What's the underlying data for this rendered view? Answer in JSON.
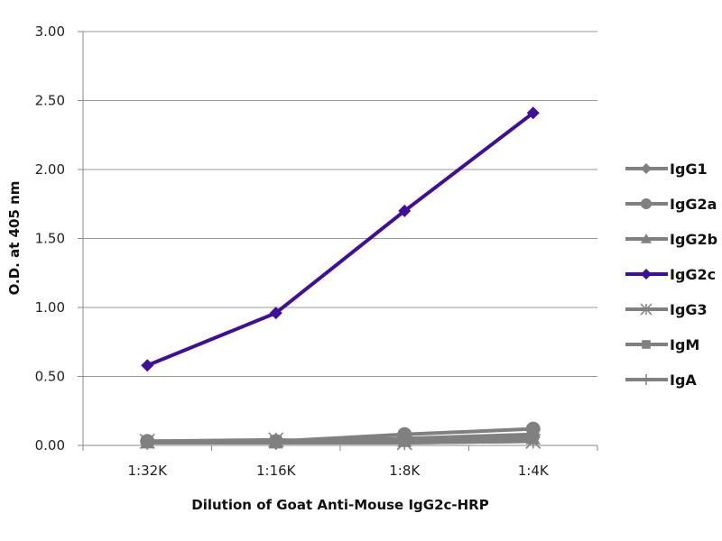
{
  "chart_data": {
    "type": "line",
    "title": "",
    "xlabel": "Dilution of Goat Anti-Mouse IgG2c-HRP",
    "ylabel": "O.D. at 405 nm",
    "categories": [
      "1:32K",
      "1:16K",
      "1:8K",
      "1:4K"
    ],
    "ylim": [
      0,
      3
    ],
    "yticks": [
      "0.00",
      "0.50",
      "1.00",
      "1.50",
      "2.00",
      "2.50",
      "3.00"
    ],
    "grid": true,
    "legend_position": "right",
    "series": [
      {
        "name": "IgG1",
        "marker": "diamond",
        "color": "#808080",
        "values": [
          0.03,
          0.02,
          0.04,
          0.06
        ]
      },
      {
        "name": "IgG2a",
        "marker": "circle",
        "color": "#808080",
        "values": [
          0.03,
          0.03,
          0.08,
          0.12
        ]
      },
      {
        "name": "IgG2b",
        "marker": "triangle",
        "color": "#808080",
        "values": [
          0.02,
          0.02,
          0.03,
          0.05
        ]
      },
      {
        "name": "IgG2c",
        "marker": "diamond",
        "color": "#3f0f9c",
        "values": [
          0.58,
          0.96,
          1.7,
          2.41
        ]
      },
      {
        "name": "IgG3",
        "marker": "star",
        "color": "#808080",
        "values": [
          0.03,
          0.04,
          0.02,
          0.03
        ]
      },
      {
        "name": "IgM",
        "marker": "square",
        "color": "#808080",
        "values": [
          0.03,
          0.03,
          0.05,
          0.08
        ]
      },
      {
        "name": "IgA",
        "marker": "plus",
        "color": "#808080",
        "values": [
          0.02,
          0.02,
          0.02,
          0.03
        ]
      }
    ]
  }
}
